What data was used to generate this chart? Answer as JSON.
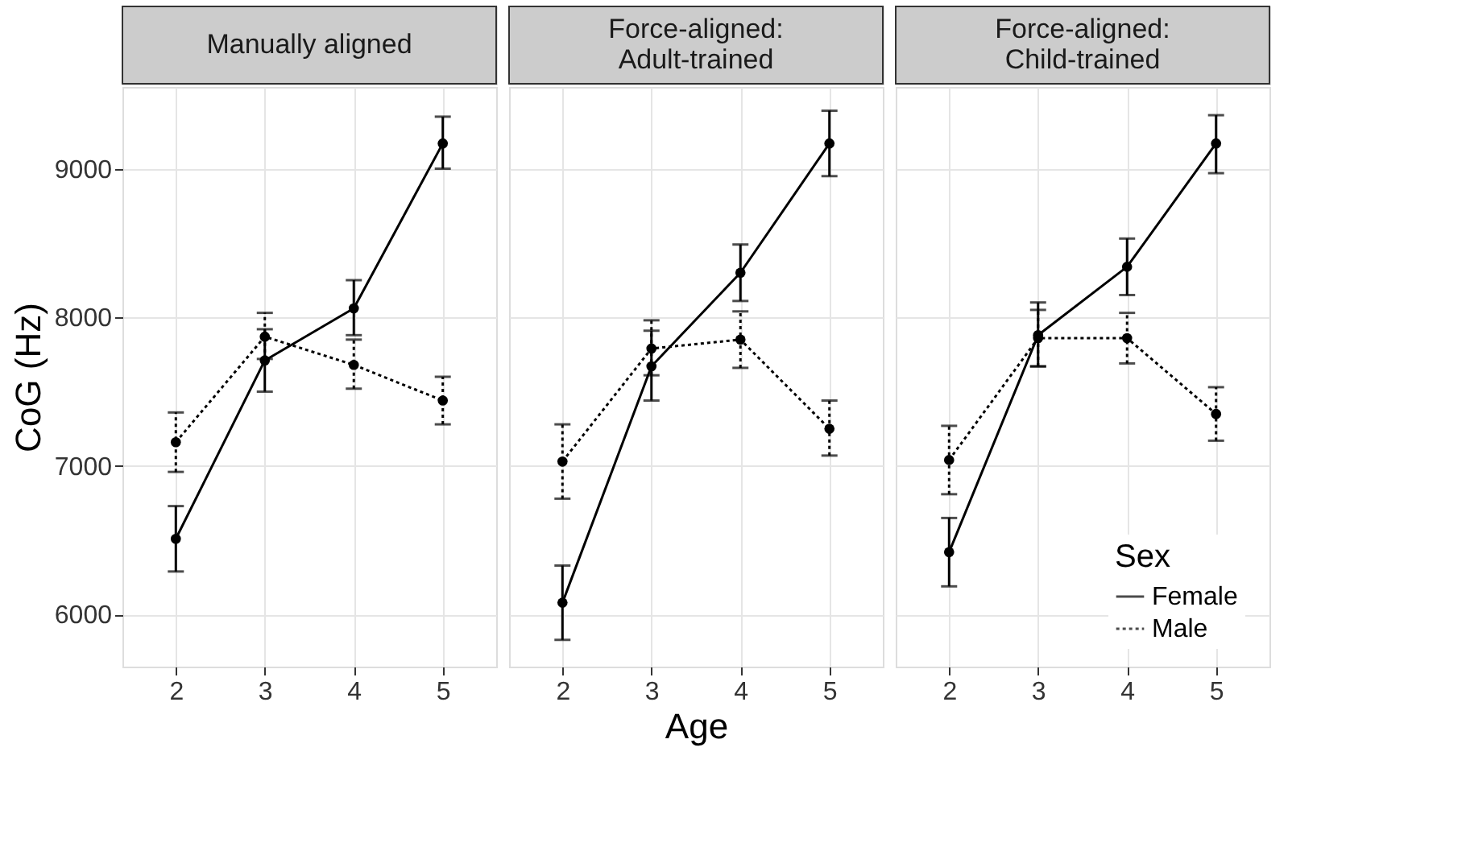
{
  "chart_data": [
    {
      "type": "line",
      "title": "Manually aligned",
      "ylabel": "CoG (Hz)",
      "x": [
        2,
        3,
        4,
        5
      ],
      "xlim": [
        1.4,
        5.6
      ],
      "xticks": [
        2,
        3,
        4,
        5
      ],
      "ylim": [
        5650,
        9550
      ],
      "yticks": [
        6000,
        7000,
        8000,
        9000
      ],
      "grid": true,
      "marker": "circle",
      "legend": false,
      "series": [
        {
          "color": "#000000",
          "line_style": "solid",
          "values": [
            6510,
            7710,
            8060,
            9170
          ],
          "errors": [
            [
              6290,
              6730
            ],
            [
              7500,
              7920
            ],
            [
              7880,
              8250
            ],
            [
              9000,
              9350
            ]
          ]
        },
        {
          "color": "#000000",
          "line_style": "dotted",
          "values": [
            7160,
            7870,
            7680,
            7440
          ],
          "errors": [
            [
              6960,
              7360
            ],
            [
              7720,
              8030
            ],
            [
              7520,
              7850
            ],
            [
              7280,
              7600
            ]
          ]
        }
      ]
    },
    {
      "type": "line",
      "title": "Force-aligned:\nAdult-trained",
      "xlabel": "Age",
      "x": [
        2,
        3,
        4,
        5
      ],
      "xlim": [
        1.4,
        5.6
      ],
      "xticks": [
        2,
        3,
        4,
        5
      ],
      "ylim": [
        5650,
        9550
      ],
      "yticks": [
        6000,
        7000,
        8000,
        9000
      ],
      "tick_labels": "x",
      "grid": true,
      "marker": "circle",
      "legend": false,
      "series": [
        {
          "color": "#000000",
          "line_style": "solid",
          "values": [
            6080,
            7670,
            8300,
            9170
          ],
          "errors": [
            [
              5830,
              6330
            ],
            [
              7440,
              7910
            ],
            [
              8110,
              8490
            ],
            [
              8950,
              9390
            ]
          ]
        },
        {
          "color": "#000000",
          "line_style": "dotted",
          "values": [
            7030,
            7790,
            7850,
            7250
          ],
          "errors": [
            [
              6780,
              7280
            ],
            [
              7610,
              7980
            ],
            [
              7660,
              8040
            ],
            [
              7070,
              7440
            ]
          ]
        }
      ]
    },
    {
      "type": "line",
      "title": "Force-aligned:\nChild-trained",
      "legend_title": "Sex",
      "x": [
        2,
        3,
        4,
        5
      ],
      "xlim": [
        1.4,
        5.6
      ],
      "xticks": [
        2,
        3,
        4,
        5
      ],
      "ylim": [
        5650,
        9550
      ],
      "yticks": [
        6000,
        7000,
        8000,
        9000
      ],
      "tick_labels": "x",
      "grid": true,
      "marker": "circle",
      "legend": "bottom right",
      "series": [
        {
          "name": "Female",
          "color": "#000000",
          "line_style": "solid",
          "values": [
            6420,
            7880,
            8340,
            9170
          ],
          "errors": [
            [
              6190,
              6650
            ],
            [
              7670,
              8100
            ],
            [
              8150,
              8530
            ],
            [
              8970,
              9360
            ]
          ]
        },
        {
          "name": "Male",
          "color": "#000000",
          "line_style": "dotted",
          "values": [
            7040,
            7860,
            7860,
            7350
          ],
          "errors": [
            [
              6810,
              7270
            ],
            [
              7670,
              8050
            ],
            [
              7690,
              8030
            ],
            [
              7170,
              7530
            ]
          ]
        }
      ]
    }
  ]
}
